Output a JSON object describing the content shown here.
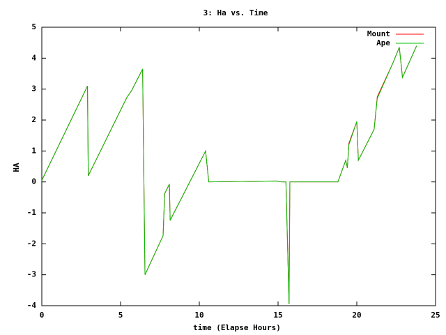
{
  "chart_data": {
    "type": "line",
    "title": "3: Ha vs. Time",
    "x_label": "time (Elapse Hours)",
    "y_label": "HA",
    "x": [
      0,
      2.9,
      2.95,
      5.4,
      5.7,
      6.4,
      6.55,
      7.7,
      7.8,
      8.1,
      8.15,
      10.4,
      10.6,
      14.9,
      15.2,
      15.5,
      15.7,
      15.75,
      18.8,
      19.3,
      19.4,
      19.5,
      20.0,
      20.1,
      21.1,
      21.3,
      22.3,
      22.7,
      22.9,
      23.8
    ],
    "series": [
      {
        "name": "Mount",
        "color": "#ff0000",
        "values": [
          0.05,
          3.1,
          0.2,
          2.73,
          2.95,
          3.65,
          -3.0,
          -1.74,
          -0.38,
          -0.07,
          -1.24,
          1.0,
          0,
          0.03,
          0,
          0,
          -3.95,
          0,
          0,
          0.7,
          0.45,
          1.25,
          1.95,
          0.7,
          1.7,
          2.75,
          3.85,
          4.35,
          3.38,
          4.4
        ]
      },
      {
        "name": "Ape",
        "color": "#00c000",
        "values": [
          0.05,
          3.1,
          0.2,
          2.73,
          2.95,
          3.65,
          -3.0,
          -1.74,
          -0.38,
          -0.07,
          -1.24,
          1.0,
          0,
          0.03,
          0,
          0,
          -3.95,
          0,
          0,
          0.7,
          0.45,
          1.2,
          1.95,
          0.7,
          1.7,
          2.7,
          3.85,
          4.35,
          3.38,
          4.4
        ]
      }
    ],
    "xlim": [
      0,
      25
    ],
    "xticks": [
      0,
      5,
      10,
      15,
      20,
      25
    ],
    "ylim": [
      -4,
      5
    ],
    "yticks": [
      -4,
      -3,
      -2,
      -1,
      0,
      1,
      2,
      3,
      4,
      5
    ],
    "legend": "upper-right"
  }
}
